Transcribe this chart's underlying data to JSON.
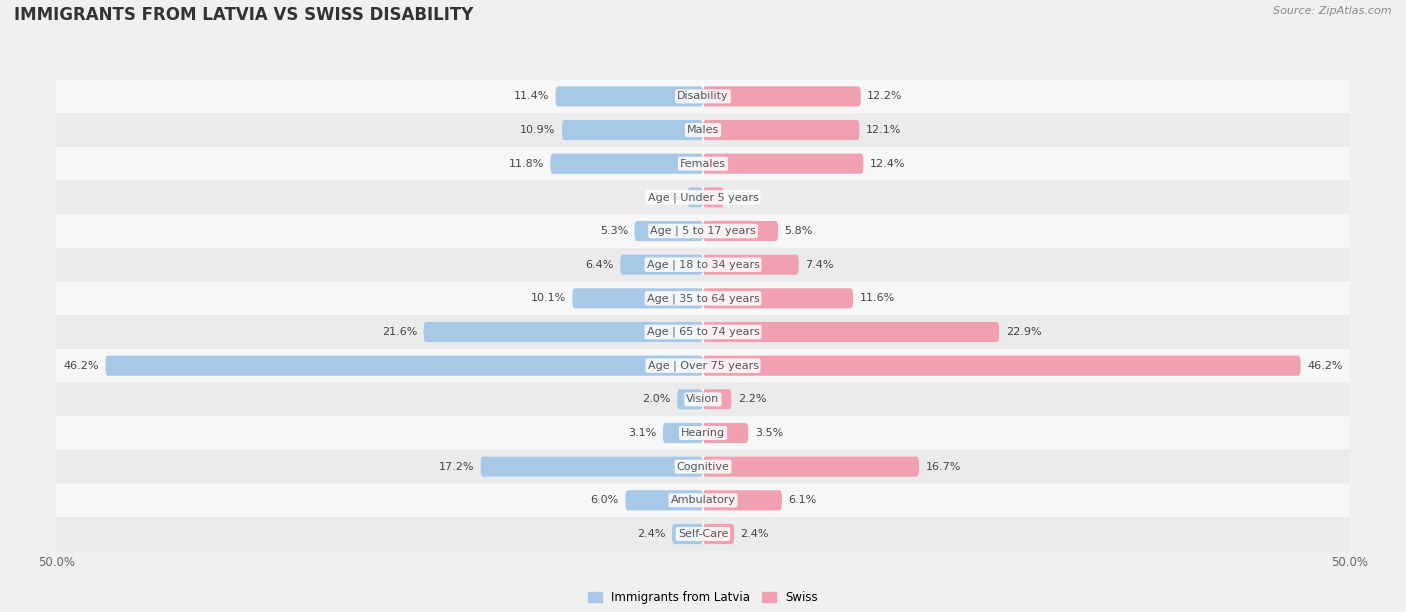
{
  "title": "IMMIGRANTS FROM LATVIA VS SWISS DISABILITY",
  "source": "Source: ZipAtlas.com",
  "categories": [
    "Disability",
    "Males",
    "Females",
    "Age | Under 5 years",
    "Age | 5 to 17 years",
    "Age | 18 to 34 years",
    "Age | 35 to 64 years",
    "Age | 65 to 74 years",
    "Age | Over 75 years",
    "Vision",
    "Hearing",
    "Cognitive",
    "Ambulatory",
    "Self-Care"
  ],
  "left_values": [
    11.4,
    10.9,
    11.8,
    1.2,
    5.3,
    6.4,
    10.1,
    21.6,
    46.2,
    2.0,
    3.1,
    17.2,
    6.0,
    2.4
  ],
  "right_values": [
    12.2,
    12.1,
    12.4,
    1.6,
    5.8,
    7.4,
    11.6,
    22.9,
    46.2,
    2.2,
    3.5,
    16.7,
    6.1,
    2.4
  ],
  "left_color": "#a8c8e8",
  "right_color": "#f0a0b0",
  "left_label": "Immigrants from Latvia",
  "right_label": "Swiss",
  "max_value": 50.0,
  "bg_stripe_even": "#f2f2f2",
  "bg_stripe_odd": "#e8e8e8",
  "bar_row_color": "#ffffff",
  "title_fontsize": 12,
  "source_fontsize": 8,
  "value_fontsize": 8,
  "cat_fontsize": 8
}
